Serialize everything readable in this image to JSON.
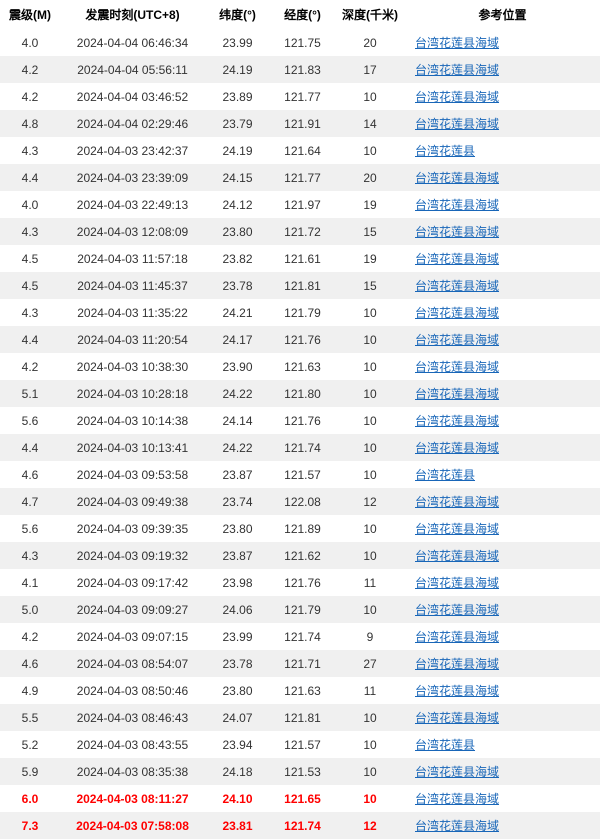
{
  "columns": {
    "mag": "震级(M)",
    "time": "发震时刻(UTC+8)",
    "lat": "纬度(°)",
    "lon": "经度(°)",
    "depth": "深度(千米)",
    "loc": "参考位置"
  },
  "link_color": "#1866b8",
  "highlight_color": "#ff0000",
  "row_colors": {
    "odd": "#ffffff",
    "even": "#f0f0f0"
  },
  "rows": [
    {
      "mag": "4.0",
      "time": "2024-04-04 06:46:34",
      "lat": "23.99",
      "lon": "121.75",
      "depth": "20",
      "loc": "台湾花莲县海域",
      "hl": false
    },
    {
      "mag": "4.2",
      "time": "2024-04-04 05:56:11",
      "lat": "24.19",
      "lon": "121.83",
      "depth": "17",
      "loc": "台湾花莲县海域",
      "hl": false
    },
    {
      "mag": "4.2",
      "time": "2024-04-04 03:46:52",
      "lat": "23.89",
      "lon": "121.77",
      "depth": "10",
      "loc": "台湾花莲县海域",
      "hl": false
    },
    {
      "mag": "4.8",
      "time": "2024-04-04 02:29:46",
      "lat": "23.79",
      "lon": "121.91",
      "depth": "14",
      "loc": "台湾花莲县海域",
      "hl": false
    },
    {
      "mag": "4.3",
      "time": "2024-04-03 23:42:37",
      "lat": "24.19",
      "lon": "121.64",
      "depth": "10",
      "loc": "台湾花莲县",
      "hl": false
    },
    {
      "mag": "4.4",
      "time": "2024-04-03 23:39:09",
      "lat": "24.15",
      "lon": "121.77",
      "depth": "20",
      "loc": "台湾花莲县海域",
      "hl": false
    },
    {
      "mag": "4.0",
      "time": "2024-04-03 22:49:13",
      "lat": "24.12",
      "lon": "121.97",
      "depth": "19",
      "loc": "台湾花莲县海域",
      "hl": false
    },
    {
      "mag": "4.3",
      "time": "2024-04-03 12:08:09",
      "lat": "23.80",
      "lon": "121.72",
      "depth": "15",
      "loc": "台湾花莲县海域",
      "hl": false
    },
    {
      "mag": "4.5",
      "time": "2024-04-03 11:57:18",
      "lat": "23.82",
      "lon": "121.61",
      "depth": "19",
      "loc": "台湾花莲县海域",
      "hl": false
    },
    {
      "mag": "4.5",
      "time": "2024-04-03 11:45:37",
      "lat": "23.78",
      "lon": "121.81",
      "depth": "15",
      "loc": "台湾花莲县海域",
      "hl": false
    },
    {
      "mag": "4.3",
      "time": "2024-04-03 11:35:22",
      "lat": "24.21",
      "lon": "121.79",
      "depth": "10",
      "loc": "台湾花莲县海域",
      "hl": false
    },
    {
      "mag": "4.4",
      "time": "2024-04-03 11:20:54",
      "lat": "24.17",
      "lon": "121.76",
      "depth": "10",
      "loc": "台湾花莲县海域",
      "hl": false
    },
    {
      "mag": "4.2",
      "time": "2024-04-03 10:38:30",
      "lat": "23.90",
      "lon": "121.63",
      "depth": "10",
      "loc": "台湾花莲县海域",
      "hl": false
    },
    {
      "mag": "5.1",
      "time": "2024-04-03 10:28:18",
      "lat": "24.22",
      "lon": "121.80",
      "depth": "10",
      "loc": "台湾花莲县海域",
      "hl": false
    },
    {
      "mag": "5.6",
      "time": "2024-04-03 10:14:38",
      "lat": "24.14",
      "lon": "121.76",
      "depth": "10",
      "loc": "台湾花莲县海域",
      "hl": false
    },
    {
      "mag": "4.4",
      "time": "2024-04-03 10:13:41",
      "lat": "24.22",
      "lon": "121.74",
      "depth": "10",
      "loc": "台湾花莲县海域",
      "hl": false
    },
    {
      "mag": "4.6",
      "time": "2024-04-03 09:53:58",
      "lat": "23.87",
      "lon": "121.57",
      "depth": "10",
      "loc": "台湾花莲县",
      "hl": false
    },
    {
      "mag": "4.7",
      "time": "2024-04-03 09:49:38",
      "lat": "23.74",
      "lon": "122.08",
      "depth": "12",
      "loc": "台湾花莲县海域",
      "hl": false
    },
    {
      "mag": "5.6",
      "time": "2024-04-03 09:39:35",
      "lat": "23.80",
      "lon": "121.89",
      "depth": "10",
      "loc": "台湾花莲县海域",
      "hl": false
    },
    {
      "mag": "4.3",
      "time": "2024-04-03 09:19:32",
      "lat": "23.87",
      "lon": "121.62",
      "depth": "10",
      "loc": "台湾花莲县海域",
      "hl": false
    },
    {
      "mag": "4.1",
      "time": "2024-04-03 09:17:42",
      "lat": "23.98",
      "lon": "121.76",
      "depth": "11",
      "loc": "台湾花莲县海域",
      "hl": false
    },
    {
      "mag": "5.0",
      "time": "2024-04-03 09:09:27",
      "lat": "24.06",
      "lon": "121.79",
      "depth": "10",
      "loc": "台湾花莲县海域",
      "hl": false
    },
    {
      "mag": "4.2",
      "time": "2024-04-03 09:07:15",
      "lat": "23.99",
      "lon": "121.74",
      "depth": "9",
      "loc": "台湾花莲县海域",
      "hl": false
    },
    {
      "mag": "4.6",
      "time": "2024-04-03 08:54:07",
      "lat": "23.78",
      "lon": "121.71",
      "depth": "27",
      "loc": "台湾花莲县海域",
      "hl": false
    },
    {
      "mag": "4.9",
      "time": "2024-04-03 08:50:46",
      "lat": "23.80",
      "lon": "121.63",
      "depth": "11",
      "loc": "台湾花莲县海域",
      "hl": false
    },
    {
      "mag": "5.5",
      "time": "2024-04-03 08:46:43",
      "lat": "24.07",
      "lon": "121.81",
      "depth": "10",
      "loc": "台湾花莲县海域",
      "hl": false
    },
    {
      "mag": "5.2",
      "time": "2024-04-03 08:43:55",
      "lat": "23.94",
      "lon": "121.57",
      "depth": "10",
      "loc": "台湾花莲县",
      "hl": false
    },
    {
      "mag": "5.9",
      "time": "2024-04-03 08:35:38",
      "lat": "24.18",
      "lon": "121.53",
      "depth": "10",
      "loc": "台湾花莲县海域",
      "hl": false
    },
    {
      "mag": "6.0",
      "time": "2024-04-03 08:11:27",
      "lat": "24.10",
      "lon": "121.65",
      "depth": "10",
      "loc": "台湾花莲县海域",
      "hl": true
    },
    {
      "mag": "7.3",
      "time": "2024-04-03 07:58:08",
      "lat": "23.81",
      "lon": "121.74",
      "depth": "12",
      "loc": "台湾花莲县海域",
      "hl": true
    }
  ]
}
